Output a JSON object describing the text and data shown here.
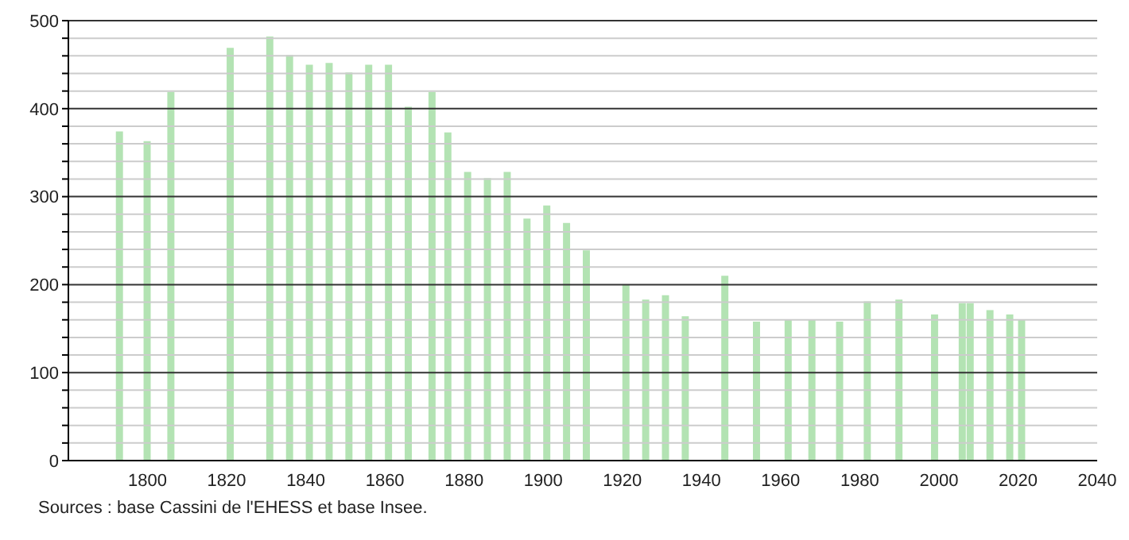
{
  "chart_data": {
    "type": "bar",
    "x": [
      1793,
      1800,
      1806,
      1821,
      1831,
      1836,
      1841,
      1846,
      1851,
      1856,
      1861,
      1866,
      1872,
      1876,
      1881,
      1886,
      1891,
      1896,
      1901,
      1906,
      1911,
      1921,
      1926,
      1931,
      1936,
      1946,
      1954,
      1962,
      1968,
      1975,
      1982,
      1990,
      1999,
      2006,
      2008,
      2013,
      2018,
      2021
    ],
    "values": [
      374,
      363,
      419,
      469,
      482,
      461,
      450,
      452,
      441,
      450,
      450,
      402,
      419,
      373,
      328,
      321,
      328,
      275,
      290,
      270,
      239,
      200,
      183,
      188,
      164,
      210,
      158,
      160,
      160,
      158,
      181,
      183,
      166,
      179,
      179,
      171,
      166,
      160
    ],
    "color": "#b3e3b3",
    "xlim": [
      1780,
      2040
    ],
    "xticks": [
      1800,
      1820,
      1840,
      1860,
      1880,
      1900,
      1920,
      1940,
      1960,
      1980,
      2000,
      2020,
      2040
    ],
    "ylim": [
      0,
      500
    ],
    "yticks": [
      0,
      {
        "value": 20,
        "label": null
      },
      {
        "value": 40,
        "label": null
      },
      {
        "value": 60,
        "label": null
      },
      {
        "value": 80,
        "label": null
      },
      100,
      {
        "value": 120,
        "label": null
      },
      {
        "value": 140,
        "label": null
      },
      {
        "value": 160,
        "label": null
      },
      {
        "value": 180,
        "label": null
      },
      200,
      {
        "value": 220,
        "label": null
      },
      {
        "value": 240,
        "label": null
      },
      {
        "value": 260,
        "label": null
      },
      {
        "value": 280,
        "label": null
      },
      300,
      {
        "value": 320,
        "label": null
      },
      {
        "value": 340,
        "label": null
      },
      {
        "value": 360,
        "label": null
      },
      {
        "value": 380,
        "label": null
      },
      400,
      {
        "value": 420,
        "label": null
      },
      {
        "value": 440,
        "label": null
      },
      {
        "value": 460,
        "label": null
      },
      {
        "value": 480,
        "label": null
      },
      500
    ],
    "grid": "y",
    "annotations": [
      "Sources : base Cassini de l'EHESS et base Insee."
    ]
  }
}
